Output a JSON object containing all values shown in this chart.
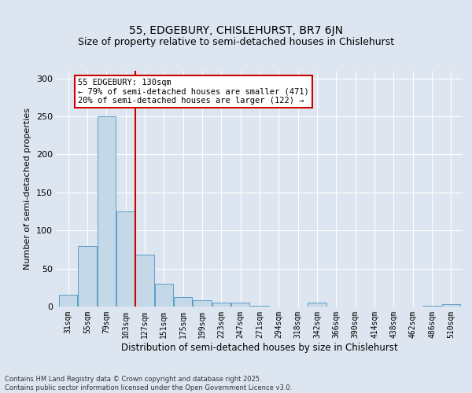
{
  "title1": "55, EDGEBURY, CHISLEHURST, BR7 6JN",
  "title2": "Size of property relative to semi-detached houses in Chislehurst",
  "xlabel": "Distribution of semi-detached houses by size in Chislehurst",
  "ylabel": "Number of semi-detached properties",
  "bar_labels": [
    "31sqm",
    "55sqm",
    "79sqm",
    "103sqm",
    "127sqm",
    "151sqm",
    "175sqm",
    "199sqm",
    "223sqm",
    "247sqm",
    "271sqm",
    "294sqm",
    "318sqm",
    "342sqm",
    "366sqm",
    "390sqm",
    "414sqm",
    "438sqm",
    "462sqm",
    "486sqm",
    "510sqm"
  ],
  "values": [
    16,
    80,
    250,
    125,
    68,
    30,
    12,
    8,
    5,
    5,
    1,
    0,
    0,
    5,
    0,
    0,
    0,
    0,
    0,
    1,
    3
  ],
  "bar_color": "#c5d8e8",
  "bar_edge_color": "#5b9ec9",
  "vline_x": 3.5,
  "vline_color": "#cc0000",
  "annotation_title": "55 EDGEBURY: 130sqm",
  "annotation_line1": "← 79% of semi-detached houses are smaller (471)",
  "annotation_line2": "20% of semi-detached houses are larger (122) →",
  "annotation_box_facecolor": "#ffffff",
  "annotation_box_edgecolor": "#cc0000",
  "ylim": [
    0,
    310
  ],
  "yticks": [
    0,
    50,
    100,
    150,
    200,
    250,
    300
  ],
  "footnote1": "Contains HM Land Registry data © Crown copyright and database right 2025.",
  "footnote2": "Contains public sector information licensed under the Open Government Licence v3.0.",
  "bg_color": "#dde6f0",
  "grid_color": "#ffffff",
  "title1_fontsize": 10,
  "title2_fontsize": 9,
  "ylabel_fontsize": 8,
  "xlabel_fontsize": 8.5,
  "tick_fontsize": 7,
  "annot_fontsize": 7.5,
  "footnote_fontsize": 6
}
